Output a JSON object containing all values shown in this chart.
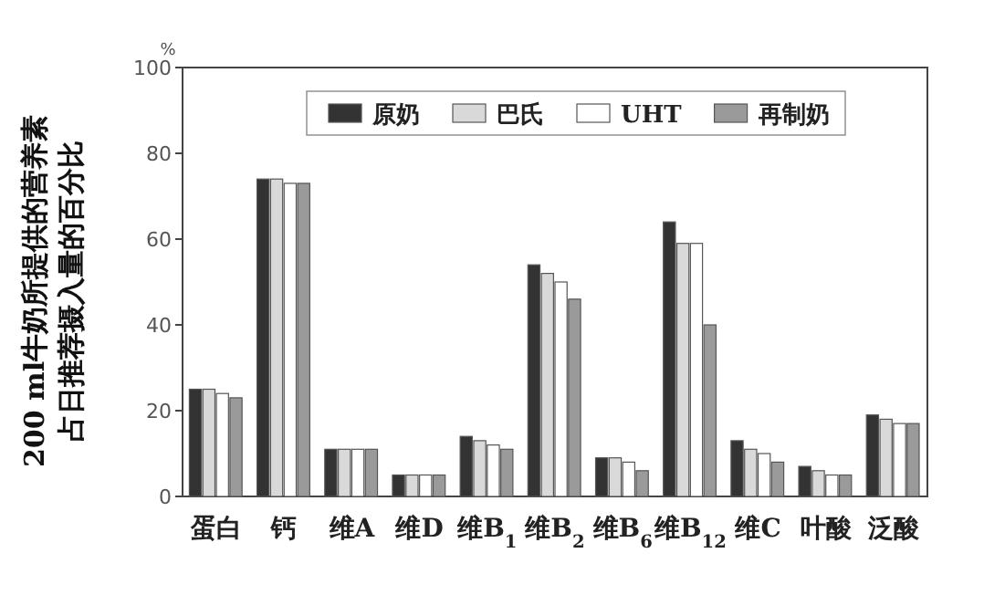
{
  "chart_data": {
    "type": "bar",
    "title": "200 ml牛奶所提供的营养素",
    "subtitle": "占日推荐摄入量的百分比",
    "ylabel": "%",
    "categories": [
      "蛋白",
      "钙",
      "维A",
      "维D",
      "维B$_{1}$",
      "维B$_{2}$",
      "维B$_{6}$",
      "维B$_{12}$",
      "维C",
      "叶酸",
      "泛酸"
    ],
    "series": [
      {
        "name": "原奶",
        "color": "#333333",
        "values": [
          25,
          74,
          11,
          5,
          14,
          54,
          9,
          64,
          13,
          7,
          19
        ]
      },
      {
        "name": "巴氏",
        "color": "#d9d9d9",
        "values": [
          25,
          74,
          11,
          5,
          13,
          52,
          9,
          59,
          11,
          6,
          18
        ]
      },
      {
        "name": "UHT",
        "color": "#ffffff",
        "values": [
          24,
          73,
          11,
          5,
          12,
          50,
          8,
          59,
          10,
          5,
          17
        ]
      },
      {
        "name": "再制奶",
        "color": "#9a9a9a",
        "values": [
          23,
          73,
          11,
          5,
          11,
          46,
          6,
          40,
          8,
          5,
          17
        ]
      }
    ],
    "ylim": [
      0,
      100
    ],
    "yticks": [
      0,
      20,
      40,
      60,
      80,
      100
    ],
    "grid": false,
    "legend": "top"
  }
}
